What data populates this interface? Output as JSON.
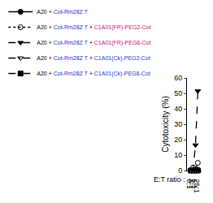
{
  "chart_data": {
    "type": "line",
    "x_label": "E:T ratio :",
    "y_label": "Cytotoxicity (%)",
    "categories": [
      "0:1",
      "1:1",
      "5:1",
      "25:1"
    ],
    "series": [
      {
        "name": "A20 + Cot-Rm28Z T",
        "color": "#000000",
        "marker": "circle",
        "line_style": "solid",
        "values": [
          0,
          0,
          0,
          0.5
        ]
      },
      {
        "name": "A20 + Cot-Rm28Z T + C1A01(FR)-PEG2-Cot",
        "color": "#000000",
        "marker": "circle-open",
        "line_style": "dot",
        "values": [
          0,
          2,
          0.5,
          5
        ]
      },
      {
        "name": "A20 + Cot-Rm28Z T + C1A01(FR)-PEG8-Cot",
        "color": "#000000",
        "marker": "triangle-down",
        "line_style": "dash",
        "values": [
          0,
          0.5,
          16.5,
          51.5
        ]
      },
      {
        "name": "A20 + Cot-Rm28Z T + C1A01(Ck)-PEG2-Cot",
        "color": "#000000",
        "marker": "triangle-down-open",
        "line_style": "dashdot",
        "values": [
          0,
          0,
          0,
          0.5
        ]
      },
      {
        "name": "A20 + Cot-Rm28Z T + C1A01(Ck)-PEG8-Cot",
        "color": "#000000",
        "marker": "square",
        "line_style": "dash",
        "values": [
          0,
          0,
          0,
          0
        ]
      }
    ],
    "ylim": [
      0,
      60
    ],
    "yticks": [
      0,
      10,
      20,
      30,
      40,
      50,
      60
    ],
    "grid": false,
    "legend": "top"
  }
}
